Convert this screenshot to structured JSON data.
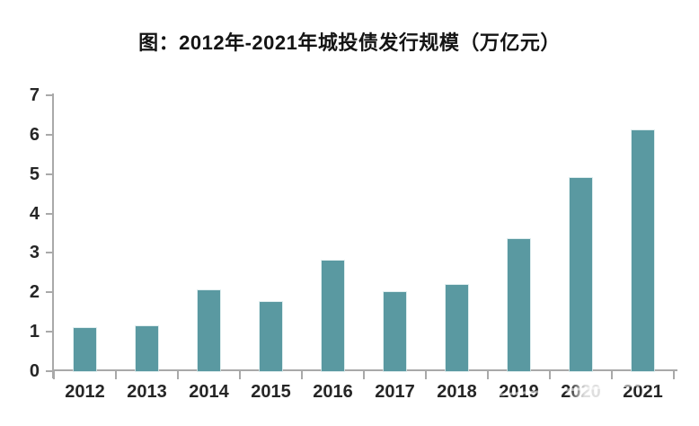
{
  "page": {
    "background": "#ffffff"
  },
  "chart_data": {
    "type": "bar",
    "title": "图：2012年-2021年城投债发行规模（万亿元）",
    "categories": [
      "2012",
      "2013",
      "2014",
      "2015",
      "2016",
      "2017",
      "2018",
      "2019",
      "2020",
      "2021"
    ],
    "values": [
      1.1,
      1.15,
      2.05,
      1.75,
      2.8,
      2.0,
      2.2,
      3.35,
      4.9,
      6.1
    ],
    "xlabel": "",
    "ylabel": "",
    "ylim": [
      0,
      7
    ],
    "yticks": [
      0,
      1,
      2,
      3,
      4,
      5,
      6,
      7
    ],
    "grid": false,
    "legend_position": "none",
    "colors": {
      "bar": "#5A99A1",
      "axis": "#A9A9A9",
      "tick_text": "#262626",
      "title_text": "#141414"
    }
  }
}
